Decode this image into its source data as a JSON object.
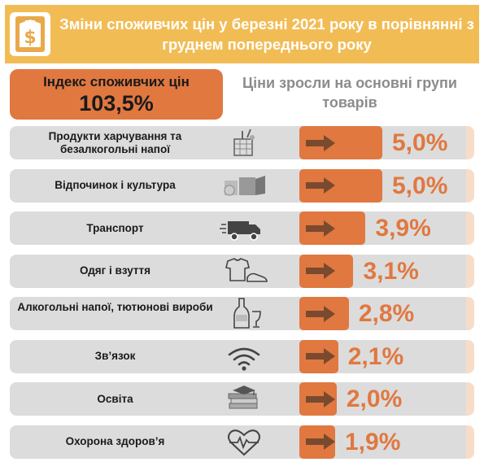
{
  "title": "Зміни споживчих цін у березні 2021 року в порівнянні з груднем попереднього року",
  "index_label": "Індекс споживчих цін",
  "index_value": "103,5%",
  "growth_label": "Ціни зросли на основні групи товарів",
  "colors": {
    "header": "#f2bc55",
    "accent": "#e07840",
    "row_bg": "#dcdcdc",
    "arrow": "#7a4a2e"
  },
  "chart_data": {
    "type": "bar",
    "orientation": "horizontal",
    "categories": [
      "Продукти харчування та безалкогольні напої",
      "Відпочинок і культура",
      "Транспорт",
      "Одяг і взуття",
      "Алкогольні напої, тютюнові вироби",
      "Зв’язок",
      "Освіта",
      "Охорона здоров’я"
    ],
    "values": [
      5.0,
      5.0,
      3.9,
      3.1,
      2.8,
      2.1,
      2.0,
      1.9
    ],
    "value_labels": [
      "5,0%",
      "5,0%",
      "3,9%",
      "3,1%",
      "2,8%",
      "2,1%",
      "2,0%",
      "1,9%"
    ],
    "icons": [
      "grocery-icon",
      "culture-icon",
      "truck-icon",
      "clothes-icon",
      "bottle-icon",
      "wifi-icon",
      "books-icon",
      "heart-pulse-icon"
    ],
    "unit": "%"
  }
}
